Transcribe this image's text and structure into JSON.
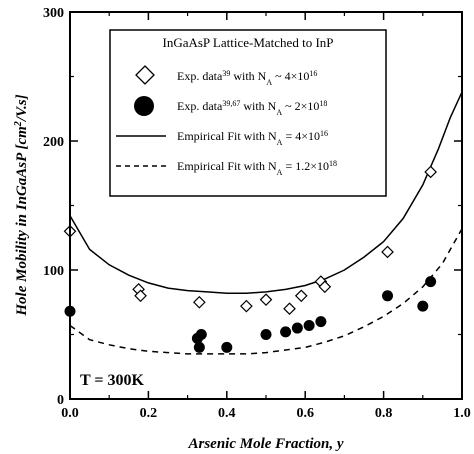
{
  "chart_data": {
    "type": "scatter",
    "title": "",
    "xlabel": "Arsenic Mole Fraction, y",
    "ylabel": "Hole Mobility in InGaAsP [cm²/V.s]",
    "xlim": [
      0,
      1
    ],
    "ylim": [
      0,
      300
    ],
    "x_ticks": [
      0.0,
      0.2,
      0.4,
      0.6,
      0.8,
      1.0
    ],
    "x_tick_labels": [
      "0.0",
      "0.2",
      "0.4",
      "0.6",
      "0.8",
      "1.0"
    ],
    "y_ticks": [
      0,
      100,
      200,
      300
    ],
    "y_tick_labels": [
      "0",
      "100",
      "200",
      "300"
    ],
    "legend": {
      "title": "InGaAsP Lattice-Matched to InP",
      "placement": "top-right",
      "entries": [
        {
          "base": "Exp. data",
          "sup": "39",
          "mid": " with N",
          "sub": "A",
          "tail": " ~ 4×10",
          "exp": "16"
        },
        {
          "base": "Exp. data",
          "sup": "39,67",
          "mid": " with N",
          "sub": "A",
          "tail": " ~ 2×10",
          "exp": "18"
        },
        {
          "base": "Empirical Fit with N",
          "sub": "A",
          "tail": " = 4×10",
          "exp": "16"
        },
        {
          "base": "Empirical Fit with N",
          "sub": "A",
          "tail": " = 1.2×10",
          "exp": "18"
        }
      ]
    },
    "annotation": "T = 300K",
    "series": [
      {
        "marker": "open-diamond",
        "points": [
          [
            0.0,
            130
          ],
          [
            0.175,
            85
          ],
          [
            0.18,
            80
          ],
          [
            0.33,
            75
          ],
          [
            0.45,
            72
          ],
          [
            0.5,
            77
          ],
          [
            0.56,
            70
          ],
          [
            0.59,
            80
          ],
          [
            0.64,
            91
          ],
          [
            0.65,
            87
          ],
          [
            0.81,
            114
          ],
          [
            0.92,
            176
          ]
        ]
      },
      {
        "marker": "filled-circle",
        "points": [
          [
            0.0,
            68
          ],
          [
            0.325,
            47
          ],
          [
            0.33,
            40
          ],
          [
            0.335,
            50
          ],
          [
            0.4,
            40
          ],
          [
            0.5,
            50
          ],
          [
            0.55,
            52
          ],
          [
            0.58,
            55
          ],
          [
            0.61,
            57
          ],
          [
            0.64,
            60
          ],
          [
            0.81,
            80
          ],
          [
            0.9,
            72
          ],
          [
            0.92,
            91
          ]
        ]
      },
      {
        "line": "solid",
        "points": [
          [
            0.0,
            142
          ],
          [
            0.05,
            116
          ],
          [
            0.1,
            104
          ],
          [
            0.15,
            96
          ],
          [
            0.2,
            90
          ],
          [
            0.25,
            86
          ],
          [
            0.3,
            84
          ],
          [
            0.35,
            83
          ],
          [
            0.4,
            82
          ],
          [
            0.45,
            82
          ],
          [
            0.5,
            83
          ],
          [
            0.55,
            85
          ],
          [
            0.6,
            88
          ],
          [
            0.65,
            93
          ],
          [
            0.7,
            100
          ],
          [
            0.75,
            110
          ],
          [
            0.8,
            122
          ],
          [
            0.85,
            140
          ],
          [
            0.9,
            166
          ],
          [
            0.94,
            194
          ],
          [
            0.97,
            218
          ],
          [
            1.0,
            238
          ]
        ]
      },
      {
        "line": "dashed",
        "points": [
          [
            0.0,
            57
          ],
          [
            0.05,
            46
          ],
          [
            0.1,
            42
          ],
          [
            0.15,
            39
          ],
          [
            0.2,
            37
          ],
          [
            0.25,
            36
          ],
          [
            0.3,
            35
          ],
          [
            0.35,
            35
          ],
          [
            0.4,
            35
          ],
          [
            0.45,
            35
          ],
          [
            0.5,
            36
          ],
          [
            0.55,
            38
          ],
          [
            0.6,
            40
          ],
          [
            0.65,
            44
          ],
          [
            0.7,
            49
          ],
          [
            0.75,
            56
          ],
          [
            0.8,
            64
          ],
          [
            0.85,
            74
          ],
          [
            0.9,
            87
          ],
          [
            0.95,
            105
          ],
          [
            1.0,
            132
          ]
        ]
      }
    ]
  }
}
